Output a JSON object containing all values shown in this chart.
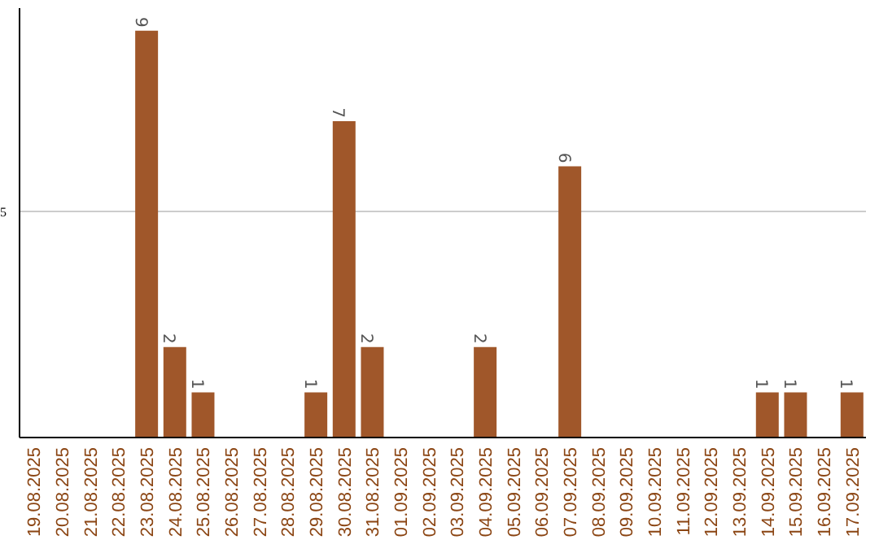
{
  "chart_data": {
    "type": "bar",
    "categories": [
      "19.08.2025",
      "20.08.2025",
      "21.08.2025",
      "22.08.2025",
      "23.08.2025",
      "24.08.2025",
      "25.08.2025",
      "26.08.2025",
      "27.08.2025",
      "28.08.2025",
      "29.08.2025",
      "30.08.2025",
      "31.08.2025",
      "01.09.2025",
      "02.09.2025",
      "03.09.2025",
      "04.09.2025",
      "05.09.2025",
      "06.09.2025",
      "07.09.2025",
      "08.09.2025",
      "09.09.2025",
      "10.09.2025",
      "11.09.2025",
      "12.09.2025",
      "13.09.2025",
      "14.09.2025",
      "15.09.2025",
      "16.09.2025",
      "17.09.2025"
    ],
    "values": [
      0,
      0,
      0,
      0,
      9,
      2,
      1,
      0,
      0,
      0,
      1,
      7,
      2,
      0,
      0,
      0,
      2,
      0,
      0,
      6,
      0,
      0,
      0,
      0,
      0,
      0,
      1,
      1,
      0,
      1
    ],
    "value_labels": [
      null,
      null,
      null,
      null,
      "9",
      "2",
      "1",
      null,
      null,
      null,
      "1",
      "7",
      "2",
      null,
      null,
      null,
      "2",
      null,
      null,
      "6",
      null,
      null,
      null,
      null,
      null,
      null,
      "1",
      "1",
      null,
      "1"
    ],
    "color": "#a0572a",
    "ylim": [
      0,
      9.5
    ],
    "yticks": [
      5
    ],
    "grid": "y"
  }
}
